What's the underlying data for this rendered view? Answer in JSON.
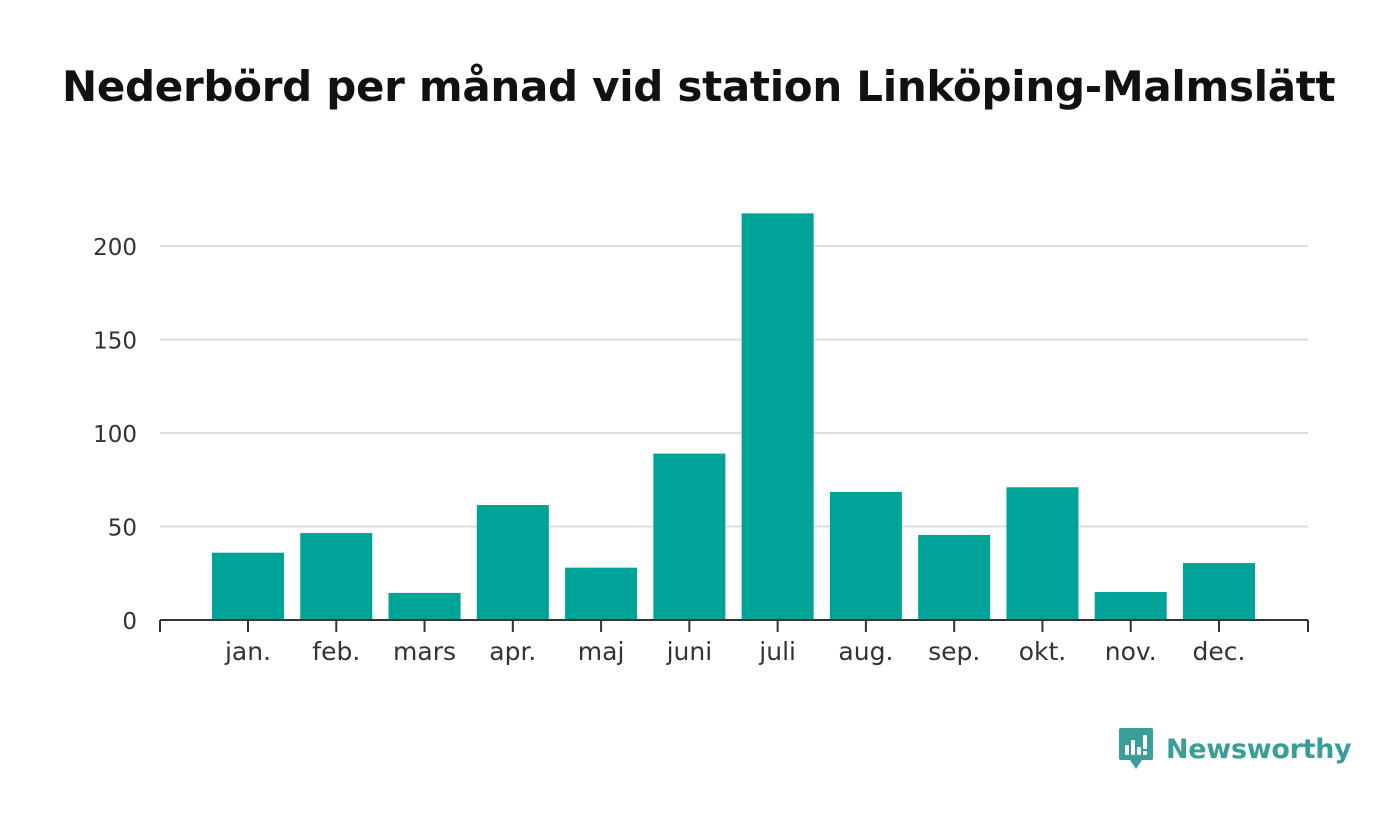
{
  "colors": {
    "bar": "#00a398",
    "grid": "#dddddd",
    "axis": "#333333",
    "text": "#333333",
    "brand": "#3a9e98"
  },
  "brand": {
    "name": "Newsworthy",
    "icon": "newsworthy-logo-icon"
  },
  "chart_data": {
    "type": "bar",
    "title": "Nederbörd per månad vid station Linköping-Malmslätt",
    "xlabel": "",
    "ylabel": "",
    "categories": [
      "jan.",
      "feb.",
      "mars",
      "apr.",
      "maj",
      "juni",
      "juli",
      "aug.",
      "sep.",
      "okt.",
      "nov.",
      "dec."
    ],
    "values": [
      36,
      46.5,
      14.5,
      61.5,
      28,
      89,
      217.5,
      68.5,
      45.5,
      71,
      15,
      30.5
    ],
    "ylim": [
      0,
      230
    ],
    "yticks": [
      0,
      50,
      100,
      150,
      200
    ],
    "grid": true,
    "legend": "none"
  }
}
